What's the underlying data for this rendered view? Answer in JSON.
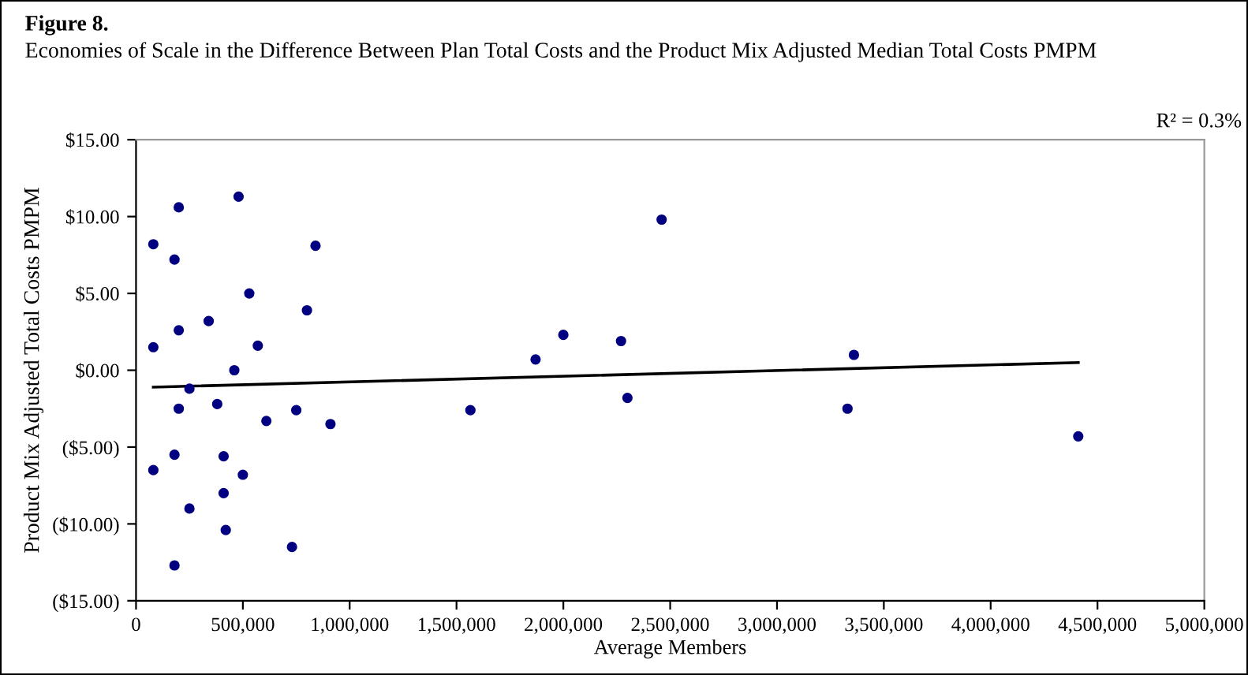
{
  "chart_data": {
    "type": "scatter",
    "title": "Figure 8.",
    "subtitle": "Economies of Scale in the Difference Between Plan Total Costs and the Product Mix Adjusted Median Total Costs PMPM",
    "xlabel": "Average Members",
    "ylabel": "Product Mix Adjusted Total Costs PMPM",
    "annotations": [
      "R² = 0.3%"
    ],
    "xlim": [
      0,
      5000000
    ],
    "xticks": [
      0,
      {
        "value": 500000,
        "label": "500,000"
      },
      {
        "value": 1000000,
        "label": "1,000,000"
      },
      {
        "value": 1500000,
        "label": "1,500,000"
      },
      {
        "value": 2000000,
        "label": "2,000,000"
      },
      {
        "value": 2500000,
        "label": "2,500,000"
      },
      {
        "value": 3000000,
        "label": "3,000,000"
      },
      {
        "value": 3500000,
        "label": "3,500,000"
      },
      {
        "value": 4000000,
        "label": "4,000,000"
      },
      {
        "value": 4500000,
        "label": "4,500,000"
      },
      {
        "value": 5000000,
        "label": "5,000,000"
      }
    ],
    "ylim": [
      -15,
      15
    ],
    "yticks": [
      {
        "value": -15,
        "label": "($15.00)"
      },
      {
        "value": -10,
        "label": "($10.00)"
      },
      {
        "value": -5,
        "label": "($5.00)"
      },
      {
        "value": 0,
        "label": "$0.00"
      },
      {
        "value": 5,
        "label": "$5.00"
      },
      {
        "value": 10,
        "label": "$10.00"
      },
      {
        "value": 15,
        "label": "$15.00"
      }
    ],
    "grid": false,
    "legend": false,
    "series": [
      {
        "marker": "circle",
        "color": "#000080",
        "x": [
          81000,
          81000,
          81000,
          180000,
          200000,
          200000,
          200000,
          180000,
          180000,
          250000,
          250000,
          340000,
          380000,
          410000,
          410000,
          420000,
          460000,
          480000,
          500000,
          530000,
          570000,
          610000,
          730000,
          750000,
          800000,
          840000,
          910000,
          1565000,
          1870000,
          2000000,
          2270000,
          2300000,
          2460000,
          3330000,
          3360000,
          4410000
        ],
        "values": [
          1.5,
          8.2,
          -6.5,
          7.2,
          10.6,
          2.6,
          -2.5,
          -5.5,
          -12.7,
          -1.2,
          -9.0,
          3.2,
          -2.2,
          -8.0,
          -5.6,
          -10.4,
          0.0,
          11.3,
          -6.8,
          5.0,
          1.6,
          -3.3,
          -11.5,
          -2.6,
          3.9,
          8.1,
          -3.5,
          -2.6,
          0.7,
          2.3,
          1.9,
          -1.8,
          9.8,
          -2.5,
          1.0,
          -4.3
        ]
      },
      {
        "type": "line",
        "color": "#000000",
        "x": [
          81000,
          4410000
        ],
        "values": [
          -1.1,
          0.5
        ],
        "marker": "none",
        "line_style": "solid"
      }
    ]
  }
}
